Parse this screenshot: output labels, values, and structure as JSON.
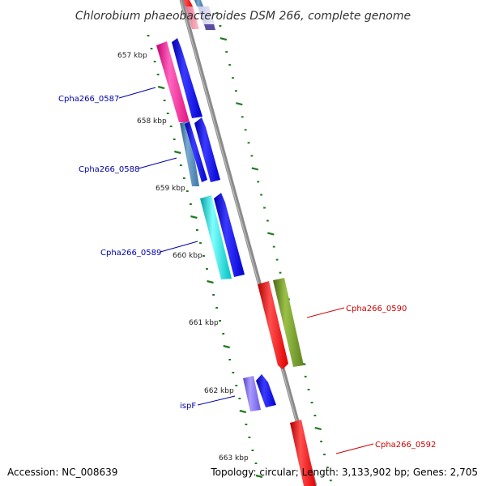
{
  "title": "Chlorobium phaeobacteroides DSM 266, complete genome",
  "footer": {
    "accession": "Accession: NC_008639",
    "topology": "Topology: circular; Length: 3,133,902 bp; Genes: 2,705"
  },
  "kbp_labels": [
    "657 kbp",
    "658 kbp",
    "659 kbp",
    "660 kbp",
    "661 kbp",
    "662 kbp",
    "663 kbp"
  ],
  "gene_labels": [
    {
      "text": "Cpha266_0587",
      "color": "#0000aa"
    },
    {
      "text": "Cpha266_0588",
      "color": "#0000aa"
    },
    {
      "text": "Cpha266_0589",
      "color": "#0000aa"
    },
    {
      "text": "Cpha266_0590",
      "color": "#cc0000"
    },
    {
      "text": "ispF",
      "color": "#0000aa"
    },
    {
      "text": "Cpha266_0592",
      "color": "#cc0000"
    }
  ],
  "colors": {
    "backbone": "#8a8a8a",
    "tick": "#1f7a1f",
    "magenta": "#ff1493",
    "blue": "#0000ee",
    "steelblue": "#4682b4",
    "cyan": "#00cccc",
    "red": "#ff0000",
    "olive": "#6b8e23",
    "purple": "#7b68ee"
  }
}
